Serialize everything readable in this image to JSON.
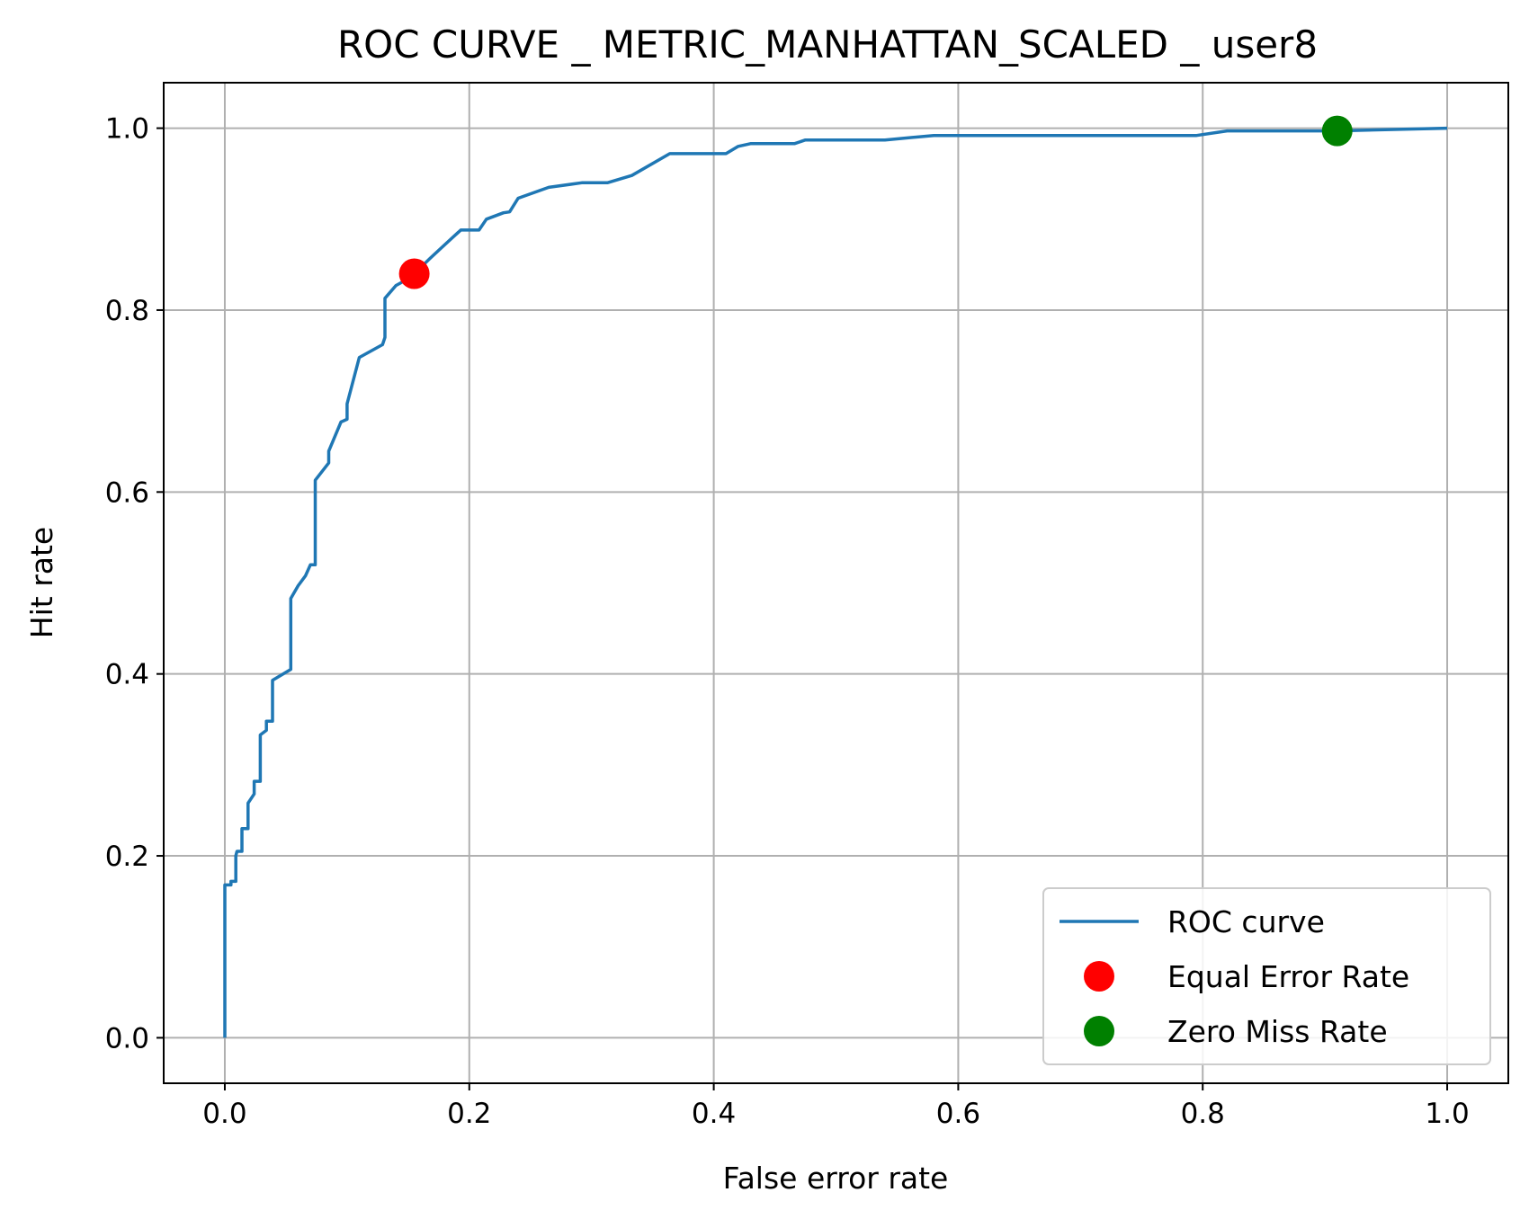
{
  "chart_data": {
    "type": "line",
    "title": "ROC CURVE _ METRIC_MANHATTAN_SCALED _ user8",
    "xlabel": "False error rate",
    "ylabel": "Hit rate",
    "xlim": [
      -0.05,
      1.05
    ],
    "ylim": [
      -0.05,
      1.05
    ],
    "xticks": [
      0.0,
      0.2,
      0.4,
      0.6,
      0.8,
      1.0
    ],
    "yticks": [
      0.0,
      0.2,
      0.4,
      0.6,
      0.8,
      1.0
    ],
    "xtick_labels": [
      "0.0",
      "0.2",
      "0.4",
      "0.6",
      "0.8",
      "1.0"
    ],
    "ytick_labels": [
      "0.0",
      "0.2",
      "0.4",
      "0.6",
      "0.8",
      "1.0"
    ],
    "grid": true,
    "legend_position": "lower-right",
    "series": [
      {
        "name": "ROC curve",
        "kind": "line",
        "color": "#1f77b4",
        "x": [
          0.0,
          0.0,
          0.005,
          0.005,
          0.009,
          0.009,
          0.01,
          0.014,
          0.014,
          0.019,
          0.019,
          0.024,
          0.024,
          0.029,
          0.029,
          0.034,
          0.034,
          0.039,
          0.039,
          0.054,
          0.054,
          0.06,
          0.06,
          0.066,
          0.066,
          0.07,
          0.074,
          0.074,
          0.085,
          0.085,
          0.095,
          0.1,
          0.1,
          0.11,
          0.129,
          0.131,
          0.131,
          0.14,
          0.148,
          0.155,
          0.168,
          0.18,
          0.193,
          0.208,
          0.214,
          0.228,
          0.233,
          0.24,
          0.265,
          0.292,
          0.313,
          0.333,
          0.364,
          0.41,
          0.42,
          0.43,
          0.466,
          0.475,
          0.54,
          0.58,
          0.795,
          0.82,
          0.91,
          1.0
        ],
        "y": [
          0.0,
          0.168,
          0.168,
          0.172,
          0.172,
          0.2,
          0.205,
          0.205,
          0.23,
          0.23,
          0.258,
          0.268,
          0.282,
          0.282,
          0.333,
          0.338,
          0.348,
          0.348,
          0.393,
          0.405,
          0.483,
          0.497,
          0.497,
          0.508,
          0.508,
          0.52,
          0.52,
          0.613,
          0.632,
          0.645,
          0.677,
          0.68,
          0.697,
          0.748,
          0.762,
          0.77,
          0.813,
          0.827,
          0.833,
          0.84,
          0.857,
          0.872,
          0.888,
          0.888,
          0.9,
          0.907,
          0.908,
          0.923,
          0.935,
          0.94,
          0.94,
          0.948,
          0.972,
          0.972,
          0.98,
          0.983,
          0.983,
          0.987,
          0.987,
          0.992,
          0.992,
          0.997,
          0.997,
          1.0
        ]
      },
      {
        "name": "Equal Error Rate",
        "kind": "point",
        "color": "#ff0000",
        "x": [
          0.155
        ],
        "y": [
          0.84
        ]
      },
      {
        "name": "Zero Miss Rate",
        "kind": "point",
        "color": "#008000",
        "x": [
          0.91
        ],
        "y": [
          0.997
        ]
      }
    ]
  }
}
